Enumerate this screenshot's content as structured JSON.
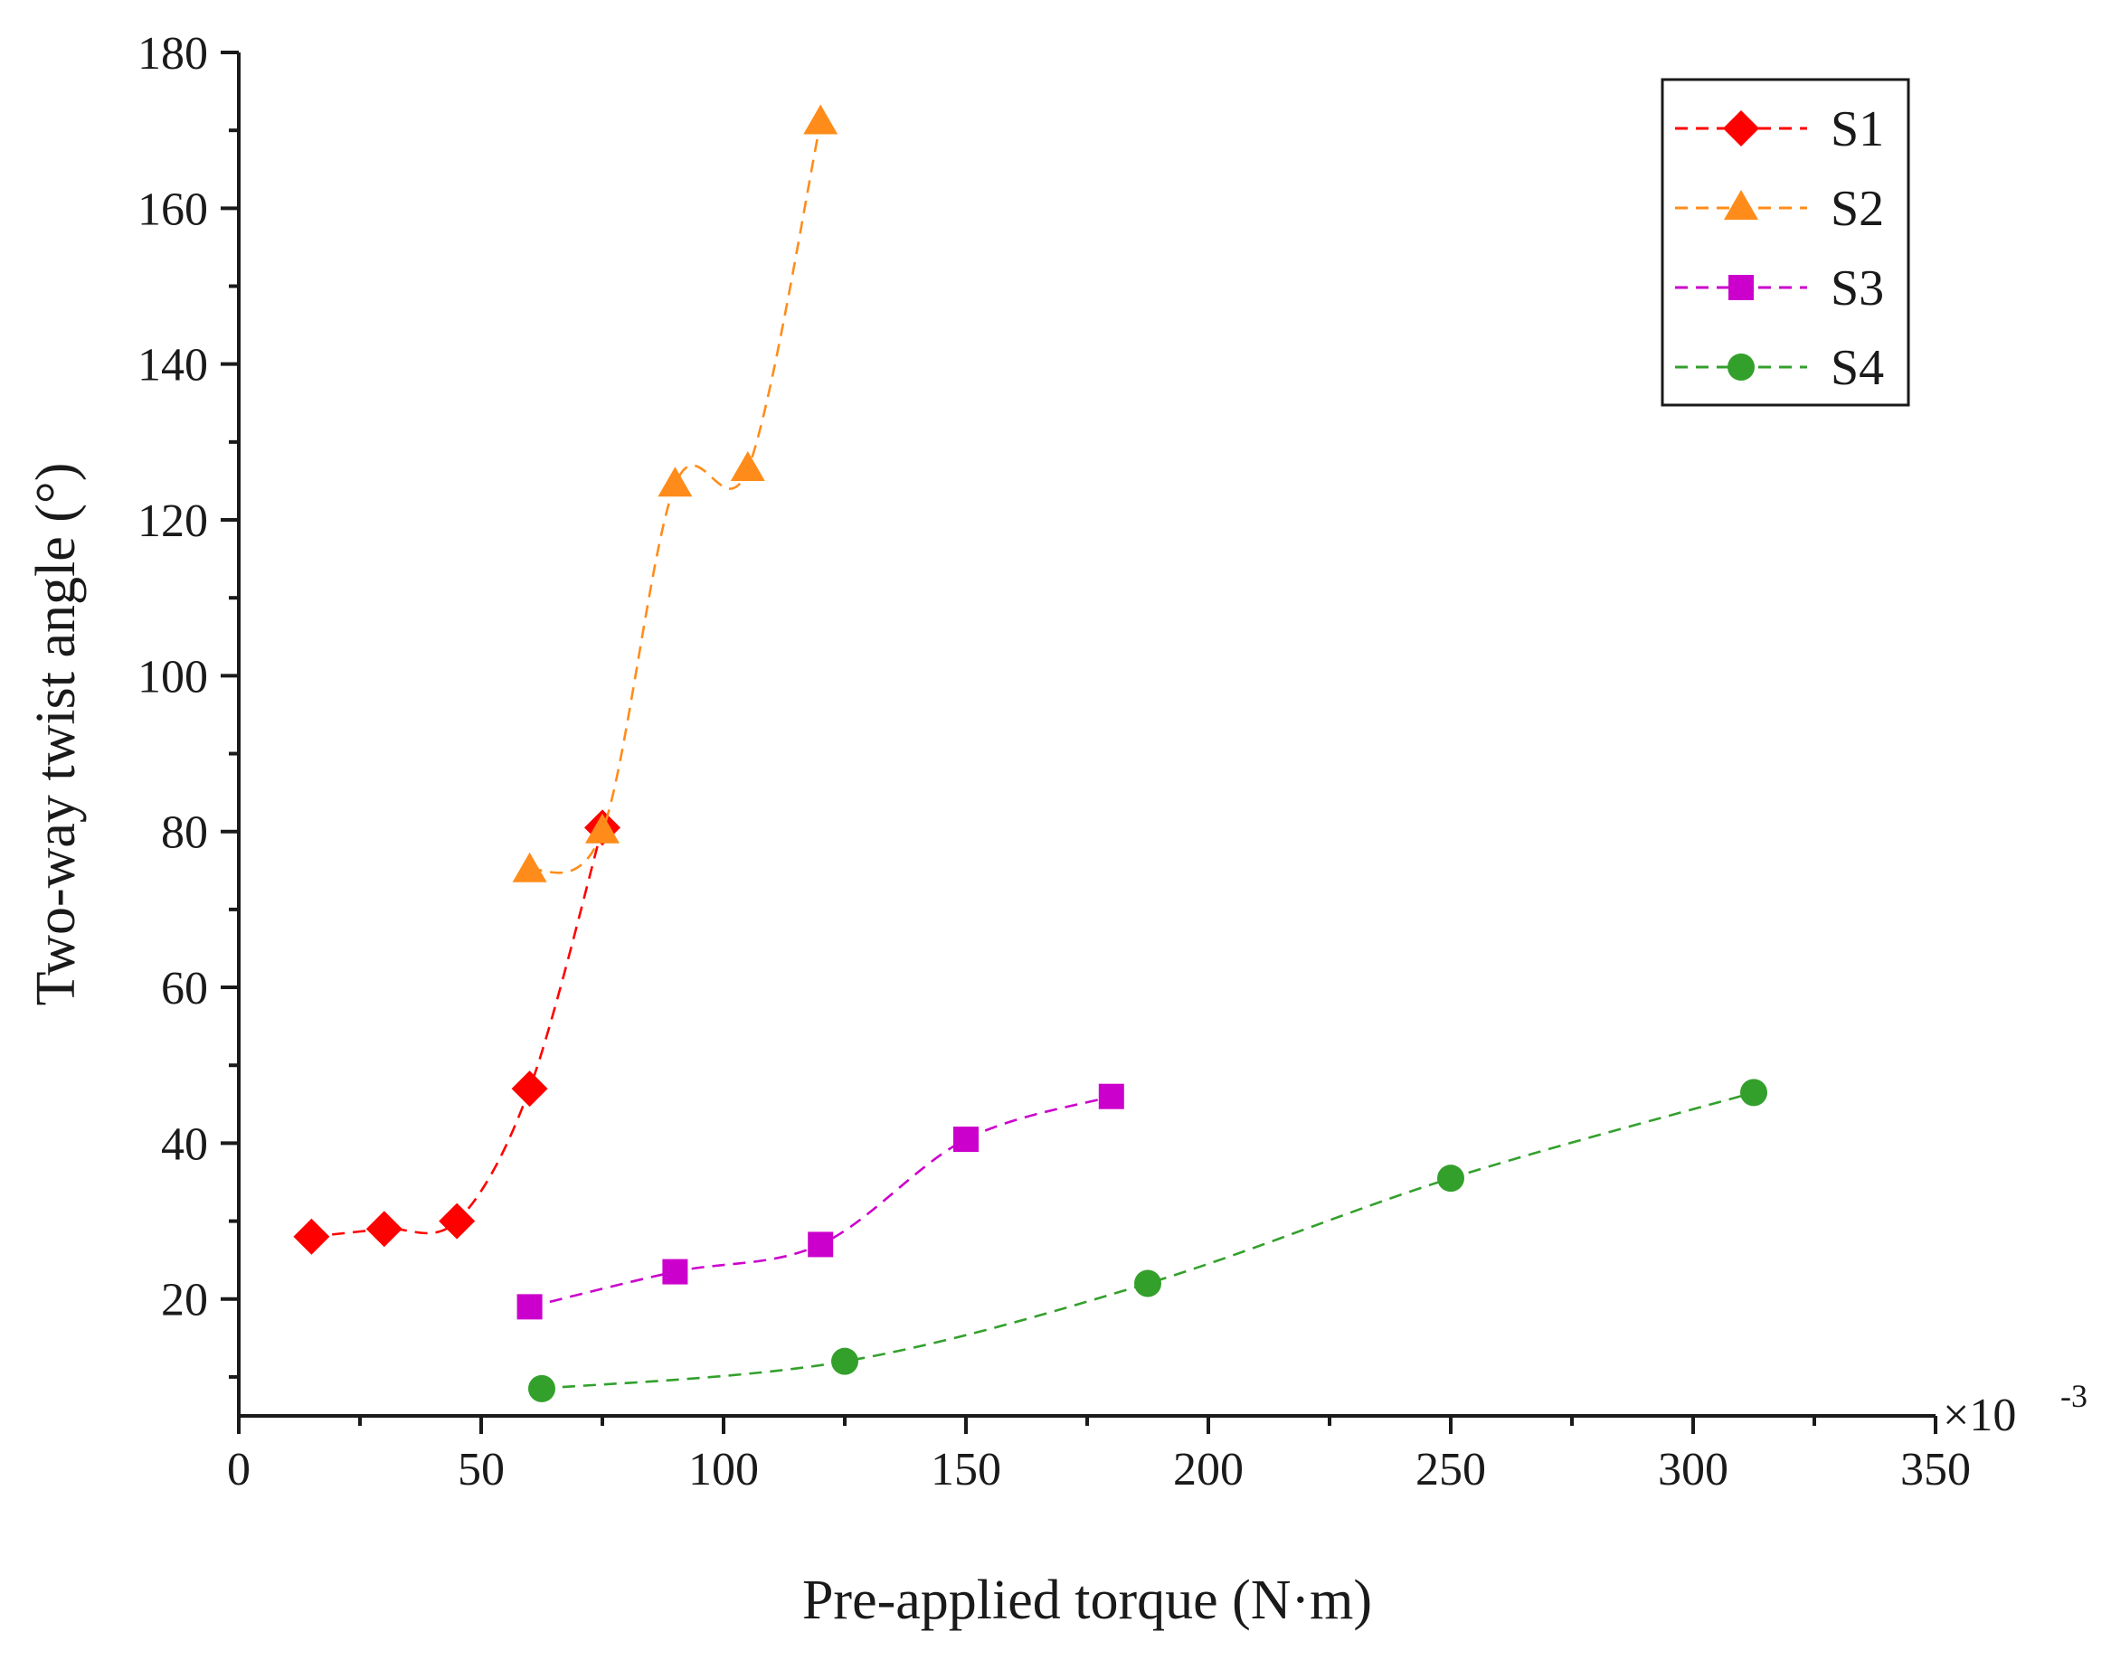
{
  "chart_data": {
    "type": "line",
    "title": "",
    "xlabel": "Pre-applied torque (N·m)",
    "ylabel": "Two-way twist angle (°)",
    "x_scale_label": "×10",
    "x_scale_exponent": "-3",
    "xlim": [
      0,
      350
    ],
    "ylim": [
      5,
      180
    ],
    "xticks": [
      0,
      50,
      100,
      150,
      200,
      250,
      300,
      350
    ],
    "yticks": [
      20,
      40,
      60,
      80,
      100,
      120,
      140,
      160,
      180
    ],
    "xtick_labels": [
      "0",
      "50",
      "100",
      "150",
      "200",
      "250",
      "300",
      "350"
    ],
    "ytick_labels": [
      "20",
      "40",
      "60",
      "80",
      "100",
      "120",
      "140",
      "160",
      "180"
    ],
    "grid": false,
    "legend_position": "top-right",
    "series": [
      {
        "name": "S1",
        "marker": "diamond",
        "color": "#ff0000",
        "x": [
          15,
          30,
          45,
          60,
          75
        ],
        "y": [
          28,
          29,
          30,
          47,
          80.5
        ]
      },
      {
        "name": "S2",
        "marker": "triangle",
        "color": "#ff8c1a",
        "x": [
          60,
          75,
          90,
          105,
          120
        ],
        "y": [
          75,
          80,
          124.5,
          126.5,
          171
        ]
      },
      {
        "name": "S3",
        "marker": "square",
        "color": "#cc00cc",
        "x": [
          60,
          90,
          120,
          150,
          180
        ],
        "y": [
          19,
          23.5,
          27,
          40.5,
          46
        ]
      },
      {
        "name": "S4",
        "marker": "circle",
        "color": "#33a02c",
        "x": [
          62.5,
          125,
          187.5,
          250,
          312.5
        ],
        "y": [
          8.5,
          12,
          22,
          35.5,
          46.5
        ]
      }
    ]
  }
}
